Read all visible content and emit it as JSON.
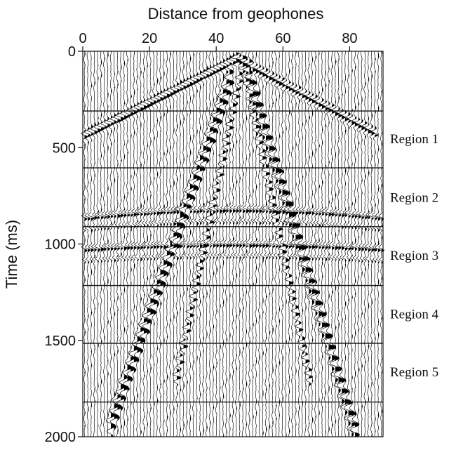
{
  "chart_data": {
    "type": "heatmap",
    "subtype": "seismic-wiggle-section",
    "xlabel": "Distance from geophones",
    "ylabel": "Time (ms)",
    "x_axis_position": "top",
    "xlim": [
      0,
      90
    ],
    "ylim": [
      0,
      2000
    ],
    "y_inverted": true,
    "x_ticks": [
      0,
      20,
      40,
      60,
      80
    ],
    "x_tick_labels": [
      "0",
      "20",
      "40",
      "60",
      "80"
    ],
    "y_ticks": [
      0,
      500,
      1000,
      1500,
      2000
    ],
    "y_tick_labels": [
      "0",
      "500",
      "1000",
      "1500",
      "2000"
    ],
    "trace_count": 91,
    "region_boundaries_ms": [
      310,
      605,
      910,
      1215,
      1515,
      1820
    ],
    "regions": [
      {
        "label": "Region 1",
        "center_ms": 455
      },
      {
        "label": "Region 2",
        "center_ms": 760
      },
      {
        "label": "Region 3",
        "center_ms": 1060
      },
      {
        "label": "Region 4",
        "center_ms": 1365
      },
      {
        "label": "Region 5",
        "center_ms": 1665
      }
    ],
    "events": [
      {
        "kind": "direct-wave",
        "points": [
          [
            46,
            40
          ],
          [
            88,
            430
          ]
        ]
      },
      {
        "kind": "direct-wave",
        "points": [
          [
            46,
            40
          ],
          [
            0,
            440
          ]
        ]
      },
      {
        "kind": "air-wave",
        "points": [
          [
            48,
            60
          ],
          [
            68,
            1700
          ]
        ]
      },
      {
        "kind": "air-wave",
        "points": [
          [
            48,
            60
          ],
          [
            28,
            1700
          ]
        ]
      },
      {
        "kind": "ground-roll",
        "points": [
          [
            50,
            150
          ],
          [
            82,
            2000
          ]
        ]
      },
      {
        "kind": "ground-roll",
        "points": [
          [
            44,
            150
          ],
          [
            8,
            1950
          ]
        ]
      },
      {
        "kind": "reflection",
        "apex": [
          45,
          820
        ],
        "velocity": 160
      },
      {
        "kind": "reflection",
        "apex": [
          45,
          1000
        ],
        "velocity": 190
      }
    ]
  }
}
